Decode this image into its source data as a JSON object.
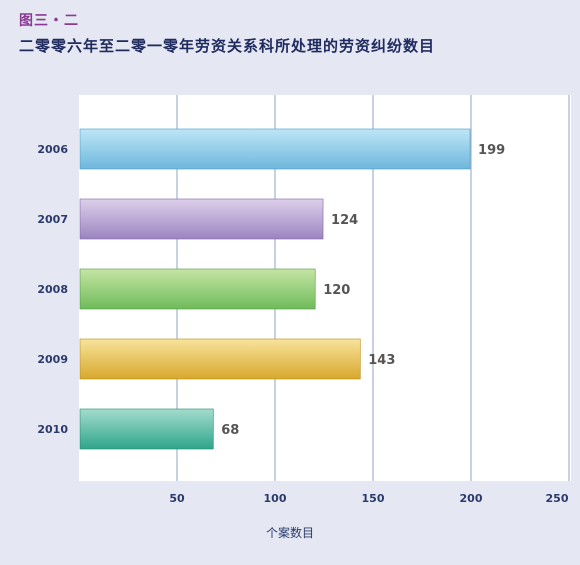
{
  "figure_label": "图三・二",
  "figure_title": "二零零六年至二零一零年劳资关系科所处理的劳资纠纷数目",
  "chart_data": {
    "type": "bar",
    "orientation": "horizontal",
    "categories": [
      "2006",
      "2007",
      "2008",
      "2009",
      "2010"
    ],
    "values": [
      199,
      124,
      120,
      143,
      68
    ],
    "xlabel": "个案数目",
    "xlim": [
      0,
      250
    ],
    "xticks": [
      50,
      100,
      150,
      200,
      250
    ],
    "grid": "vertical",
    "bar_colors": [
      {
        "top": "#bde6f6",
        "bottom": "#6eb7dc",
        "edge": "#4a9cc6"
      },
      {
        "top": "#ddd0ea",
        "bottom": "#9c84c0",
        "edge": "#7c66a8"
      },
      {
        "top": "#c5e5a4",
        "bottom": "#6fbb5a",
        "edge": "#4f9a3f"
      },
      {
        "top": "#f8e39c",
        "bottom": "#d8a82c",
        "edge": "#b88a18"
      },
      {
        "top": "#a3dccd",
        "bottom": "#2fa58a",
        "edge": "#1d8a70"
      }
    ]
  }
}
